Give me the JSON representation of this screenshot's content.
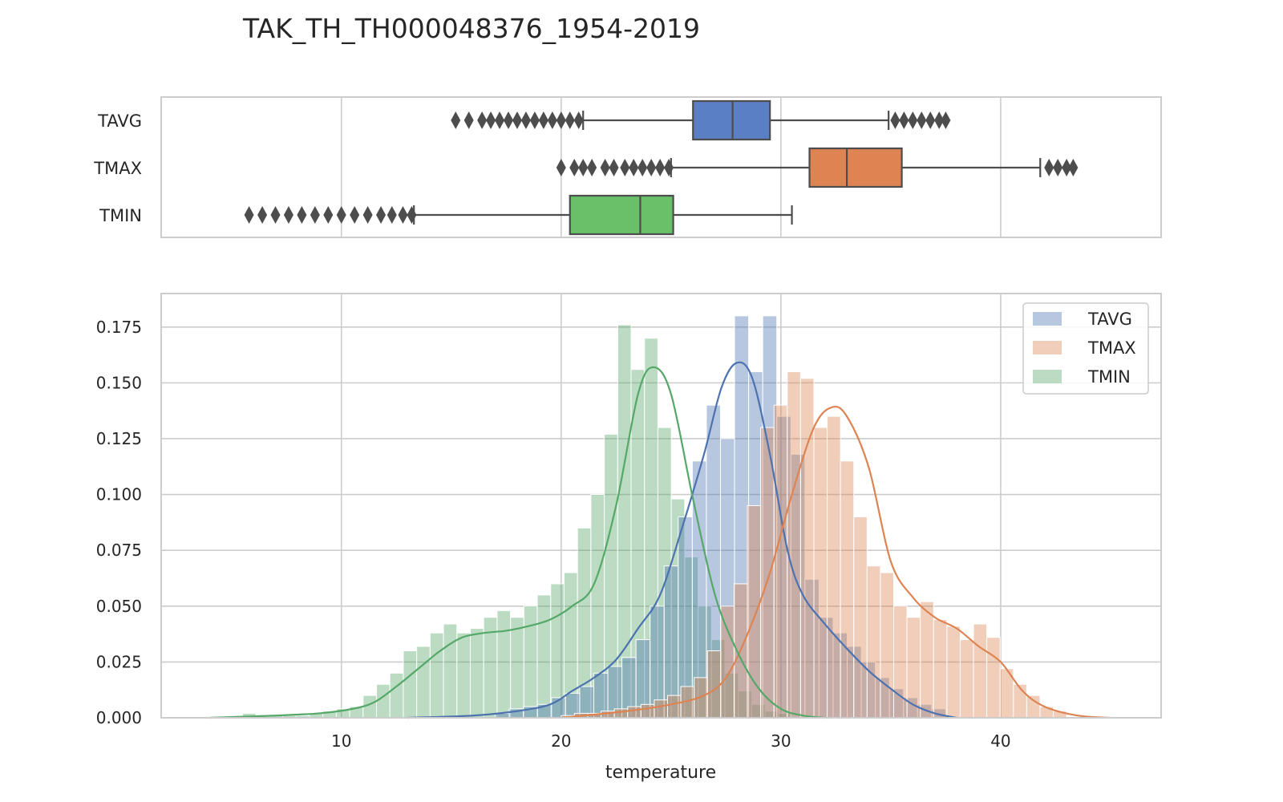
{
  "chart_data": [
    {
      "type": "box",
      "title": "TAK_TH_TH000048376_1954-2019",
      "categories": [
        "TAVG",
        "TMAX",
        "TMIN"
      ],
      "series": [
        {
          "name": "TAVG",
          "color": "#5b7fc4",
          "whisker_low": 21.0,
          "q1": 26.0,
          "median": 27.8,
          "q3": 29.5,
          "whisker_high": 34.9,
          "outliers": [
            15.2,
            15.8,
            16.4,
            16.8,
            17.2,
            17.6,
            18.0,
            18.4,
            18.8,
            19.2,
            19.6,
            20.0,
            20.4,
            20.8,
            35.2,
            35.6,
            36.0,
            36.4,
            36.8,
            37.2,
            37.5
          ]
        },
        {
          "name": "TMAX",
          "color": "#dd8452",
          "whisker_low": 25.0,
          "q1": 31.3,
          "median": 33.0,
          "q3": 35.5,
          "whisker_high": 41.8,
          "outliers": [
            20.0,
            20.6,
            21.0,
            21.4,
            22.0,
            22.4,
            22.9,
            23.3,
            23.7,
            24.1,
            24.5,
            24.9,
            42.2,
            42.6,
            43.0,
            43.3
          ]
        },
        {
          "name": "TMIN",
          "color": "#6abf69",
          "whisker_low": 13.3,
          "q1": 20.4,
          "median": 23.6,
          "q3": 25.1,
          "whisker_high": 30.5,
          "outliers": [
            5.8,
            6.4,
            7.0,
            7.6,
            8.2,
            8.8,
            9.4,
            10.0,
            10.6,
            11.2,
            11.8,
            12.3,
            12.8,
            13.2
          ]
        }
      ]
    },
    {
      "type": "histogram",
      "xlabel": "temperature",
      "xlim": [
        1.8,
        47.3
      ],
      "ylim": [
        0,
        0.19
      ],
      "x_ticks": [
        10,
        20,
        30,
        40
      ],
      "y_ticks": [
        0.0,
        0.025,
        0.05,
        0.075,
        0.1,
        0.125,
        0.15,
        0.175
      ],
      "legend": "top-right",
      "grid": true,
      "series": [
        {
          "name": "TAVG",
          "color": "#4c72b0",
          "bins": [
            17.0,
            37.5
          ],
          "values": [
            0.002,
            0.004,
            0.005,
            0.006,
            0.009,
            0.011,
            0.014,
            0.02,
            0.023,
            0.027,
            0.035,
            0.05,
            0.068,
            0.09,
            0.115,
            0.14,
            0.125,
            0.18,
            0.155,
            0.18,
            0.135,
            0.118,
            0.062,
            0.045,
            0.038,
            0.032,
            0.025,
            0.018,
            0.013,
            0.009,
            0.006,
            0.004
          ],
          "kde": [
            [
              13,
              0.0
            ],
            [
              16,
              0.001
            ],
            [
              18,
              0.003
            ],
            [
              19.5,
              0.006
            ],
            [
              20.5,
              0.012
            ],
            [
              21.5,
              0.018
            ],
            [
              22.5,
              0.026
            ],
            [
              23.5,
              0.04
            ],
            [
              24.5,
              0.055
            ],
            [
              25.5,
              0.085
            ],
            [
              26.5,
              0.118
            ],
            [
              27.3,
              0.148
            ],
            [
              28,
              0.159
            ],
            [
              28.7,
              0.152
            ],
            [
              29.5,
              0.118
            ],
            [
              30.3,
              0.075
            ],
            [
              31,
              0.055
            ],
            [
              32,
              0.042
            ],
            [
              33,
              0.031
            ],
            [
              34,
              0.021
            ],
            [
              35,
              0.013
            ],
            [
              36,
              0.006
            ],
            [
              37,
              0.002
            ],
            [
              38,
              0.0
            ]
          ]
        },
        {
          "name": "TMAX",
          "color": "#dd8452",
          "bins": [
            20.0,
            43.0
          ],
          "values": [
            0.001,
            0.002,
            0.002,
            0.003,
            0.004,
            0.005,
            0.006,
            0.008,
            0.01,
            0.014,
            0.018,
            0.03,
            0.05,
            0.06,
            0.095,
            0.13,
            0.14,
            0.155,
            0.152,
            0.13,
            0.135,
            0.115,
            0.09,
            0.068,
            0.065,
            0.05,
            0.045,
            0.052,
            0.044,
            0.041,
            0.035,
            0.042,
            0.036,
            0.022,
            0.015,
            0.01,
            0.005,
            0.003
          ],
          "kde": [
            [
              20,
              0.0
            ],
            [
              23,
              0.003
            ],
            [
              25,
              0.006
            ],
            [
              26.5,
              0.01
            ],
            [
              27.5,
              0.018
            ],
            [
              28.5,
              0.038
            ],
            [
              29.5,
              0.065
            ],
            [
              30.5,
              0.1
            ],
            [
              31.5,
              0.13
            ],
            [
              32.3,
              0.139
            ],
            [
              33,
              0.135
            ],
            [
              34,
              0.112
            ],
            [
              35,
              0.07
            ],
            [
              36,
              0.054
            ],
            [
              37,
              0.045
            ],
            [
              38,
              0.04
            ],
            [
              39,
              0.032
            ],
            [
              40,
              0.025
            ],
            [
              41,
              0.012
            ],
            [
              42,
              0.005
            ],
            [
              43.5,
              0.001
            ],
            [
              45,
              0.0
            ]
          ]
        },
        {
          "name": "TMIN",
          "color": "#55a868",
          "bins": [
            5.5,
            30.5
          ],
          "values": [
            0.002,
            0.001,
            0.001,
            0.001,
            0.001,
            0.002,
            0.003,
            0.004,
            0.005,
            0.01,
            0.015,
            0.02,
            0.03,
            0.032,
            0.038,
            0.042,
            0.038,
            0.04,
            0.045,
            0.048,
            0.045,
            0.05,
            0.055,
            0.06,
            0.065,
            0.085,
            0.1,
            0.127,
            0.176,
            0.156,
            0.17,
            0.13,
            0.098,
            0.072,
            0.05,
            0.035,
            0.02,
            0.012,
            0.006,
            0.003,
            0.002
          ],
          "kde": [
            [
              4,
              0.0
            ],
            [
              7,
              0.001
            ],
            [
              9,
              0.002
            ],
            [
              10.5,
              0.004
            ],
            [
              11.5,
              0.007
            ],
            [
              12.5,
              0.014
            ],
            [
              13.5,
              0.022
            ],
            [
              14.5,
              0.03
            ],
            [
              15.5,
              0.036
            ],
            [
              16.5,
              0.038
            ],
            [
              17.5,
              0.039
            ],
            [
              18.5,
              0.041
            ],
            [
              19.5,
              0.044
            ],
            [
              20.5,
              0.05
            ],
            [
              21.5,
              0.06
            ],
            [
              22.5,
              0.095
            ],
            [
              23.5,
              0.145
            ],
            [
              24.2,
              0.157
            ],
            [
              25,
              0.145
            ],
            [
              26,
              0.098
            ],
            [
              27,
              0.055
            ],
            [
              28,
              0.03
            ],
            [
              29,
              0.013
            ],
            [
              30,
              0.004
            ],
            [
              31,
              0.001
            ],
            [
              32,
              0.0
            ]
          ]
        }
      ]
    }
  ]
}
